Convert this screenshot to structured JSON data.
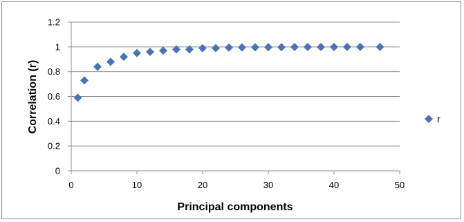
{
  "chart_data": {
    "type": "scatter",
    "title": "",
    "xlabel": "Principal components",
    "ylabel": "Correlation (r)",
    "xlim": [
      0,
      50
    ],
    "ylim": [
      0,
      1.2
    ],
    "x_ticks": [
      0,
      10,
      20,
      30,
      40,
      50
    ],
    "y_ticks": [
      0,
      0.2,
      0.4,
      0.6,
      0.8,
      1,
      1.2
    ],
    "x_tick_labels": [
      "0",
      "10",
      "20",
      "30",
      "40",
      "50"
    ],
    "y_tick_labels": [
      "0",
      "0.2",
      "0.4",
      "0.6",
      "0.8",
      "1",
      "1.2"
    ],
    "grid": "horizontal",
    "legend_position": "right",
    "series": [
      {
        "name": "r",
        "color": "#4a72b8",
        "marker": "diamond",
        "x": [
          1,
          2,
          4,
          6,
          8,
          10,
          12,
          14,
          16,
          18,
          20,
          22,
          24,
          26,
          28,
          30,
          32,
          34,
          36,
          38,
          40,
          42,
          44,
          47
        ],
        "y": [
          0.59,
          0.73,
          0.84,
          0.88,
          0.92,
          0.95,
          0.96,
          0.97,
          0.98,
          0.98,
          0.99,
          0.99,
          0.995,
          0.996,
          0.997,
          0.998,
          0.998,
          0.999,
          0.999,
          0.999,
          0.999,
          1.0,
          1.0,
          1.0
        ]
      }
    ]
  }
}
